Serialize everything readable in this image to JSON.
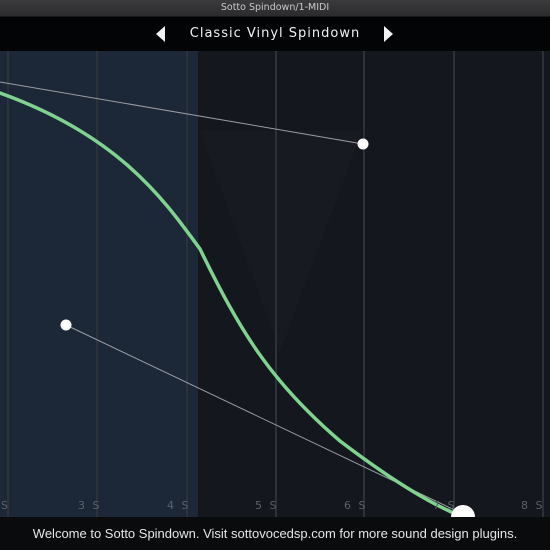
{
  "window": {
    "title": "Sotto Spindown/1-MIDI"
  },
  "preset": {
    "name": "Classic Vinyl Spindown"
  },
  "plot": {
    "tick_labels": [
      "S",
      "3 S",
      "4 S",
      "5 S",
      "6 S",
      "7 S",
      "8 S"
    ],
    "colors": {
      "curve": "#7fd38e",
      "shaded": "#1d2a3a",
      "grid": "#2b3038"
    }
  },
  "status": {
    "message": "Welcome to Sotto Spindown. Visit sottovocedsp.com for more sound design plugins."
  }
}
